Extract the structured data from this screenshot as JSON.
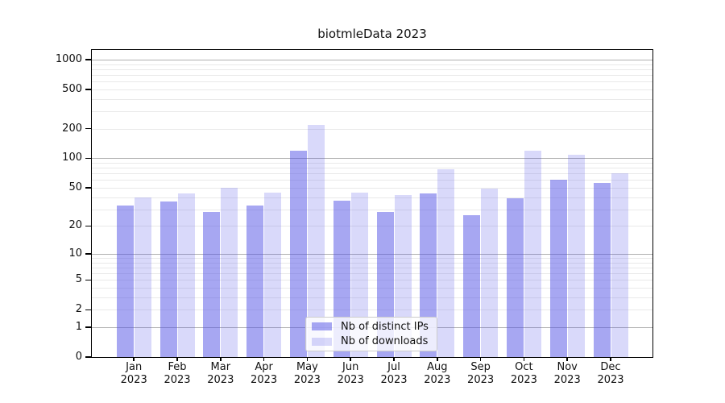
{
  "chart_data": {
    "type": "bar",
    "title": "biotmleData 2023",
    "categories": [
      "Jan 2023",
      "Feb 2023",
      "Mar 2023",
      "Apr 2023",
      "May 2023",
      "Jun 2023",
      "Jul 2023",
      "Aug 2023",
      "Sep 2023",
      "Oct 2023",
      "Nov 2023",
      "Dec 2023"
    ],
    "series": [
      {
        "name": "Nb of distinct IPs",
        "color": "rgba(80,80,230,0.5)",
        "values": [
          33,
          36,
          28,
          33,
          120,
          37,
          28,
          44,
          26,
          39,
          60,
          56
        ]
      },
      {
        "name": "Nb of downloads",
        "color": "rgba(80,80,230,0.22)",
        "values": [
          40,
          44,
          50,
          45,
          220,
          45,
          42,
          77,
          49,
          120,
          108,
          70
        ]
      }
    ],
    "yscale": "log1p",
    "ylim": [
      0,
      1250
    ],
    "y_ticks": [
      0,
      1,
      2,
      5,
      10,
      20,
      50,
      100,
      200,
      500,
      1000
    ],
    "y_major_gridlines": [
      1,
      10,
      100,
      1000
    ],
    "grid": true,
    "legend_position": "lower center",
    "colors": {
      "bar_ips_rendered": "#a8a8f2",
      "bar_downloads_rendered": "#d9d9fa",
      "major_grid": "#b0b0b0",
      "minor_grid": "#e9e9e9",
      "spine": "#000000",
      "text": "#111111",
      "legend_border": "#cccccc"
    }
  }
}
